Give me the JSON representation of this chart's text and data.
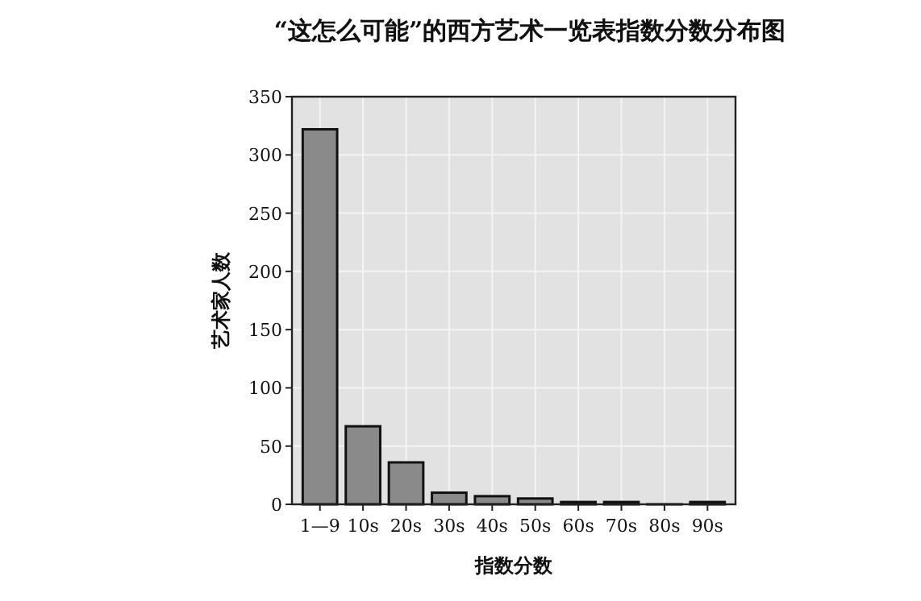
{
  "chart_data": {
    "type": "bar",
    "title": "“这怎么可能”的西方艺术一览表指数分数分布图",
    "xlabel": "指数分数",
    "ylabel": "艺术家人数",
    "categories": [
      "1—9",
      "10s",
      "20s",
      "30s",
      "40s",
      "50s",
      "60s",
      "70s",
      "80s",
      "90s"
    ],
    "values": [
      322,
      67,
      36,
      10,
      7,
      5,
      2,
      2,
      0,
      2
    ],
    "color": "#8a8a8a",
    "ylim": [
      0,
      350
    ],
    "yticks": [
      0,
      50,
      100,
      150,
      200,
      250,
      300,
      350
    ],
    "grid": true
  }
}
